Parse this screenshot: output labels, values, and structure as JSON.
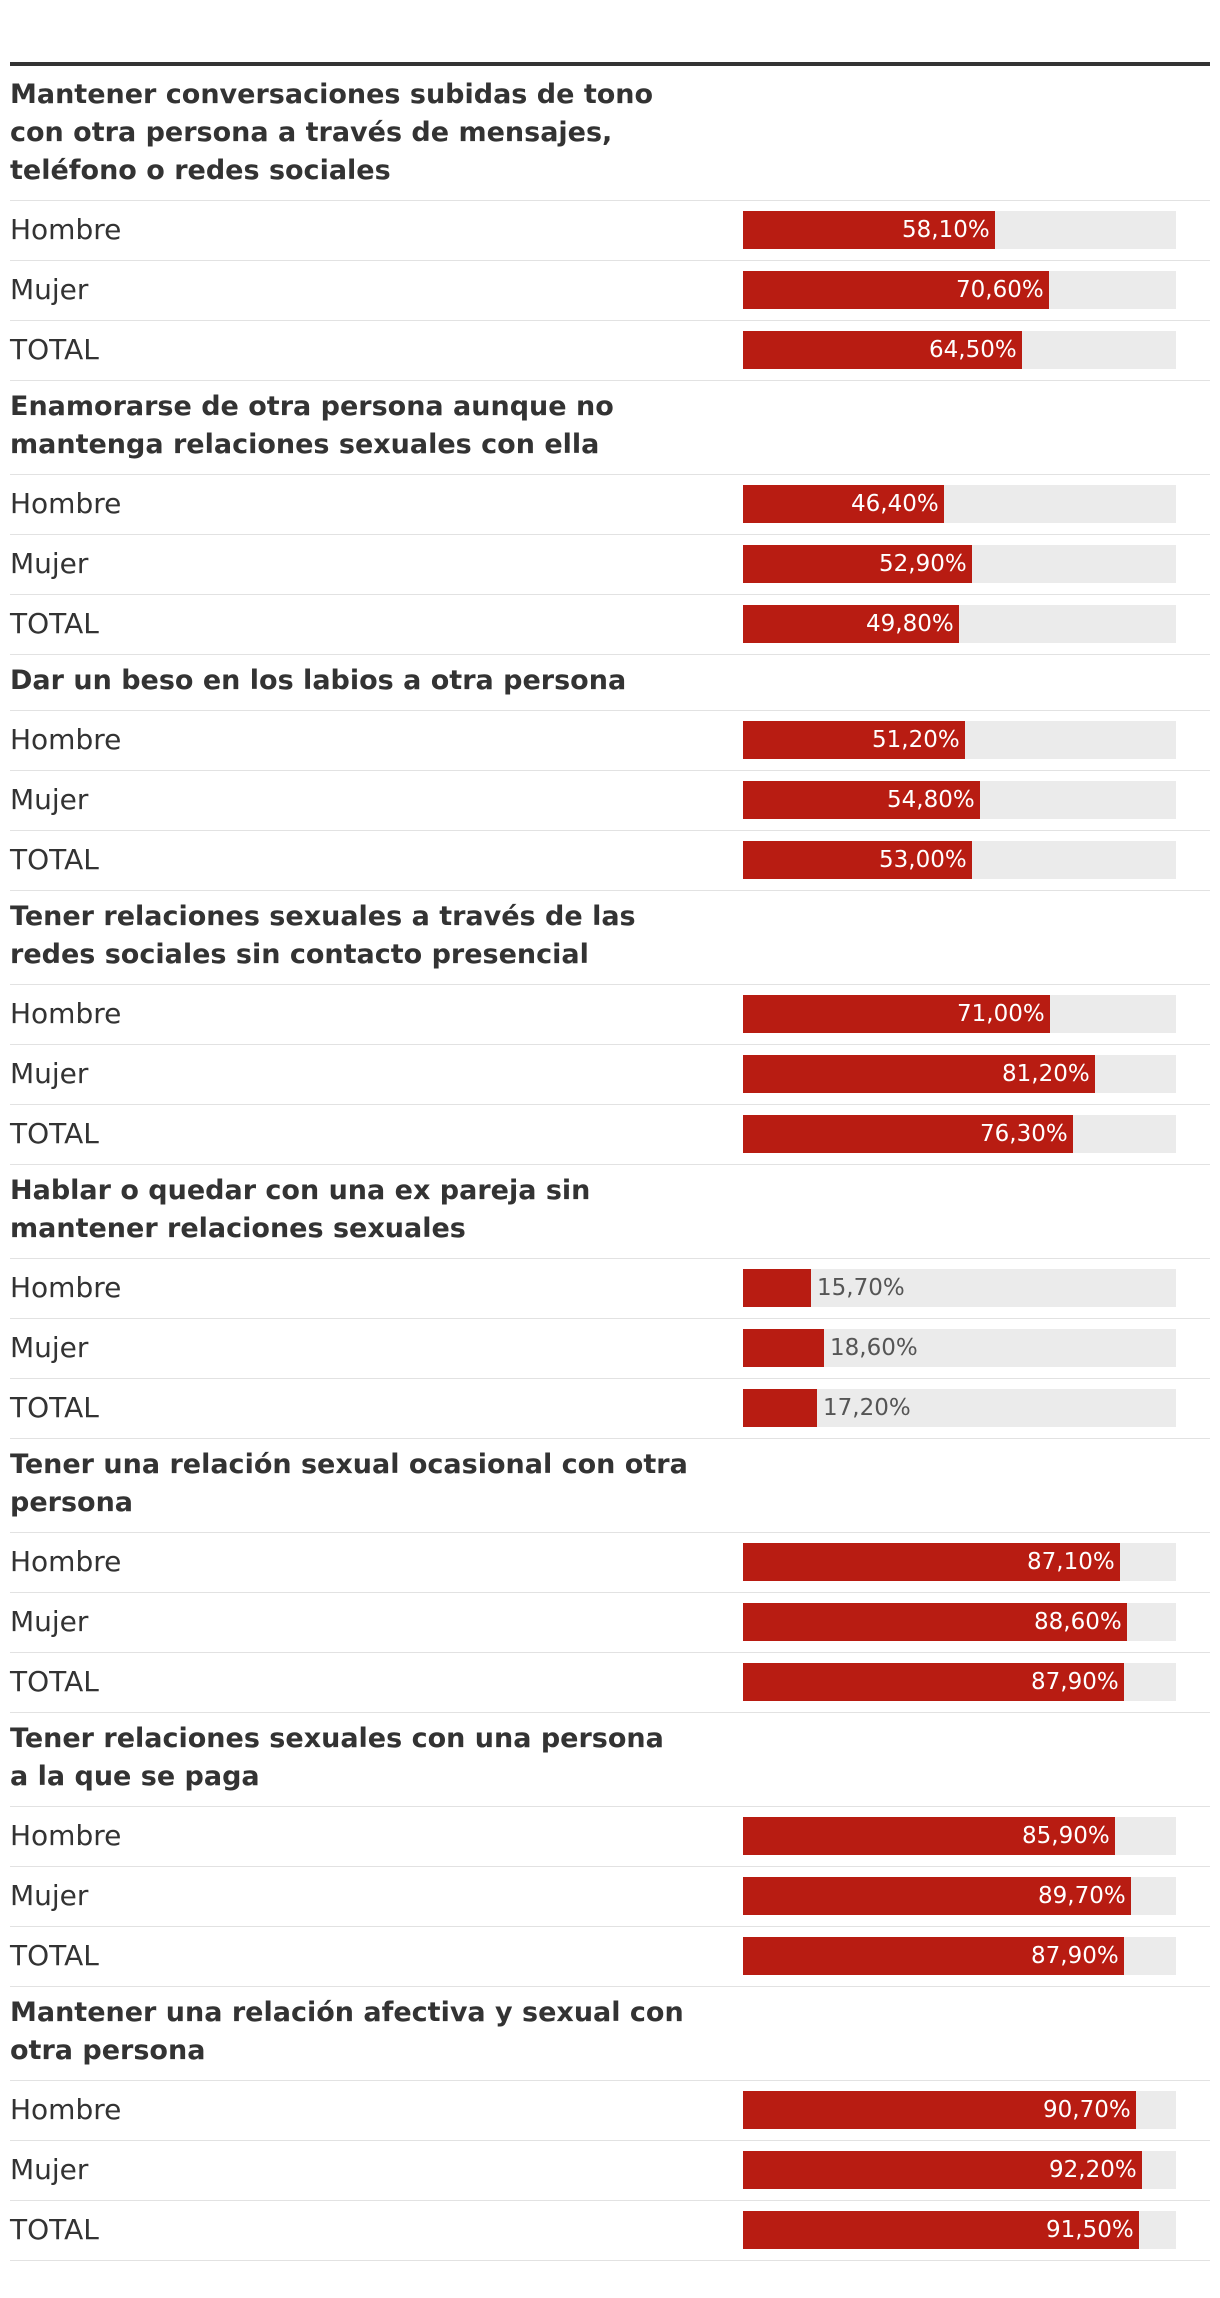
{
  "chart_data": {
    "type": "bar",
    "orientation": "horizontal",
    "unit": "%",
    "xlim": [
      0,
      100
    ],
    "colors": {
      "bar": "#b81c12",
      "track": "#ebebeb",
      "text": "#333333",
      "rule": "#333333"
    },
    "groups": [
      {
        "title": "Mantener conversaciones subidas de tono con otra persona a través de mensajes, teléfono o redes sociales",
        "rows": [
          {
            "label": "Hombre",
            "value": 58.1,
            "value_label": "58,10%"
          },
          {
            "label": "Mujer",
            "value": 70.6,
            "value_label": "70,60%"
          },
          {
            "label": "TOTAL",
            "value": 64.5,
            "value_label": "64,50%"
          }
        ]
      },
      {
        "title": "Enamorarse de otra persona aunque no mantenga relaciones sexuales con ella",
        "rows": [
          {
            "label": "Hombre",
            "value": 46.4,
            "value_label": "46,40%"
          },
          {
            "label": "Mujer",
            "value": 52.9,
            "value_label": "52,90%"
          },
          {
            "label": "TOTAL",
            "value": 49.8,
            "value_label": "49,80%"
          }
        ]
      },
      {
        "title": "Dar un beso en los labios a otra persona",
        "rows": [
          {
            "label": "Hombre",
            "value": 51.2,
            "value_label": "51,20%"
          },
          {
            "label": "Mujer",
            "value": 54.8,
            "value_label": "54,80%"
          },
          {
            "label": "TOTAL",
            "value": 53.0,
            "value_label": "53,00%"
          }
        ]
      },
      {
        "title": "Tener relaciones sexuales a través de las redes sociales sin contacto presencial",
        "rows": [
          {
            "label": "Hombre",
            "value": 71.0,
            "value_label": "71,00%"
          },
          {
            "label": "Mujer",
            "value": 81.2,
            "value_label": "81,20%"
          },
          {
            "label": "TOTAL",
            "value": 76.3,
            "value_label": "76,30%"
          }
        ]
      },
      {
        "title": "Hablar o quedar con una ex pareja sin mantener relaciones sexuales",
        "rows": [
          {
            "label": "Hombre",
            "value": 15.7,
            "value_label": "15,70%"
          },
          {
            "label": "Mujer",
            "value": 18.6,
            "value_label": "18,60%"
          },
          {
            "label": "TOTAL",
            "value": 17.2,
            "value_label": "17,20%"
          }
        ]
      },
      {
        "title": "Tener una relación sexual ocasional con otra persona",
        "rows": [
          {
            "label": "Hombre",
            "value": 87.1,
            "value_label": "87,10%"
          },
          {
            "label": "Mujer",
            "value": 88.6,
            "value_label": "88,60%"
          },
          {
            "label": "TOTAL",
            "value": 87.9,
            "value_label": "87,90%"
          }
        ]
      },
      {
        "title": "Tener relaciones sexuales con una persona a la que se paga",
        "rows": [
          {
            "label": "Hombre",
            "value": 85.9,
            "value_label": "85,90%"
          },
          {
            "label": "Mujer",
            "value": 89.7,
            "value_label": "89,70%"
          },
          {
            "label": "TOTAL",
            "value": 87.9,
            "value_label": "87,90%"
          }
        ]
      },
      {
        "title": "Mantener una relación afectiva y sexual con otra persona",
        "rows": [
          {
            "label": "Hombre",
            "value": 90.7,
            "value_label": "90,70%"
          },
          {
            "label": "Mujer",
            "value": 92.2,
            "value_label": "92,20%"
          },
          {
            "label": "TOTAL",
            "value": 91.5,
            "value_label": "91,50%"
          }
        ]
      }
    ]
  }
}
